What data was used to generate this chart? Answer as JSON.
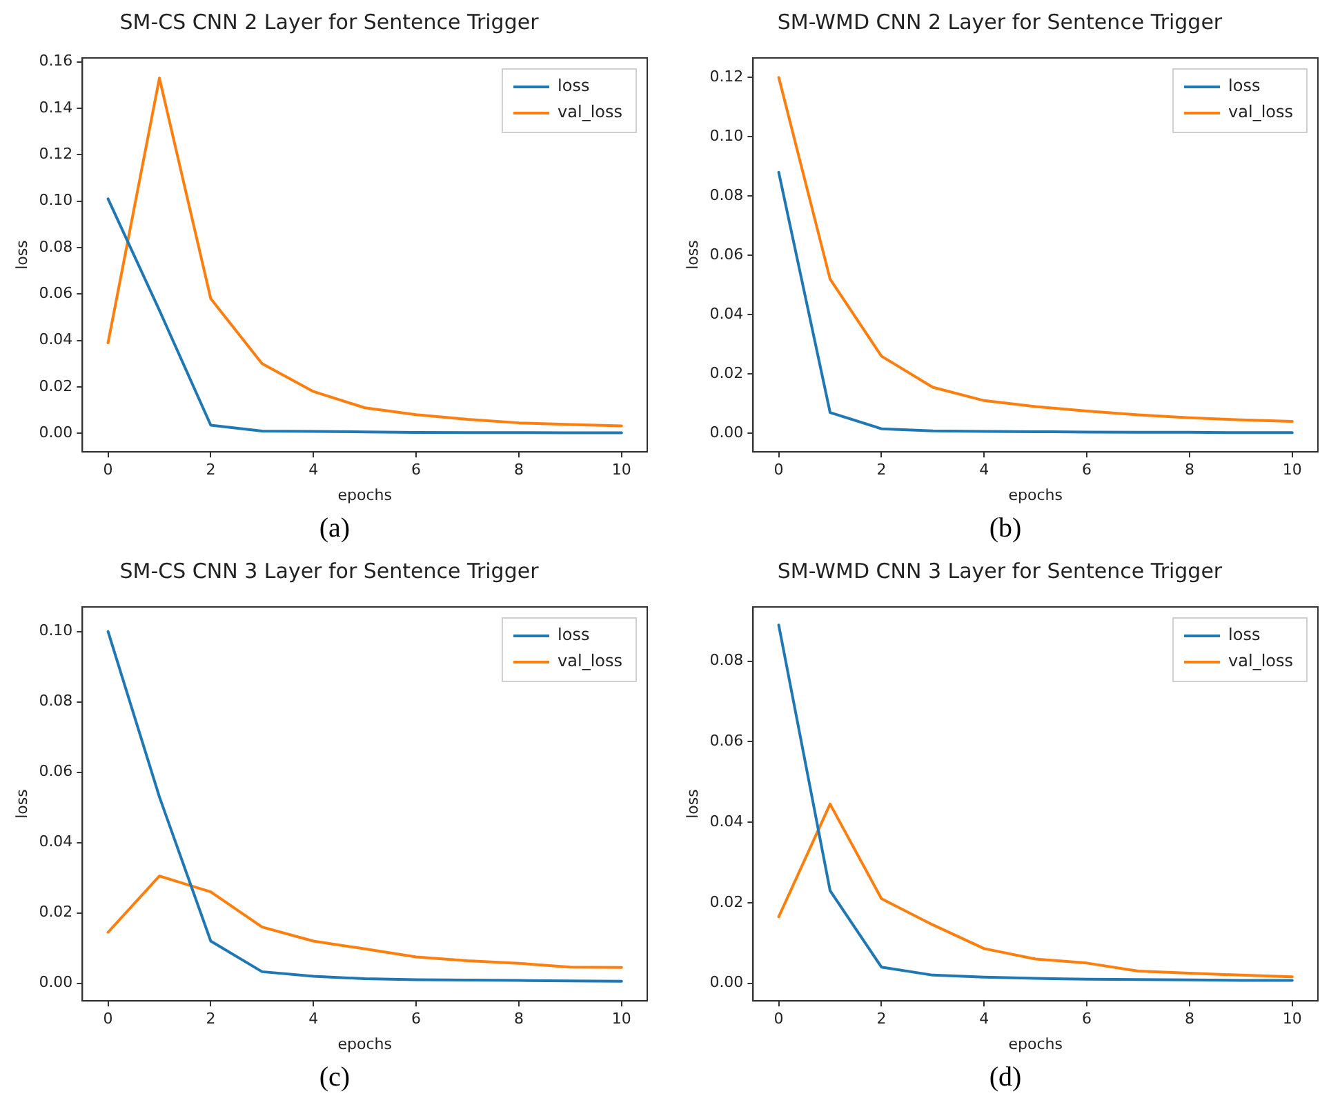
{
  "chart_data": [
    {
      "type": "line",
      "title": "SM-CS CNN 2 Layer for Sentence Trigger",
      "xlabel": "epochs",
      "ylabel": "loss",
      "annotations": [
        "(a)"
      ],
      "x": [
        0,
        1,
        2,
        3,
        4,
        5,
        6,
        7,
        8,
        9,
        10
      ],
      "xlim": [
        -0.5,
        10.5
      ],
      "xticks": [
        0,
        2,
        4,
        6,
        8,
        10
      ],
      "ylim": [
        -0.008,
        0.1617
      ],
      "yticks": [
        {
          "value": 0,
          "label": "0.00"
        },
        {
          "value": 0.02,
          "label": "0.02"
        },
        {
          "value": 0.04,
          "label": "0.04"
        },
        {
          "value": 0.06,
          "label": "0.06"
        },
        {
          "value": 0.08,
          "label": "0.08"
        },
        {
          "value": 0.1,
          "label": "0.10"
        },
        {
          "value": 0.12,
          "label": "0.12"
        },
        {
          "value": 0.14,
          "label": "0.14"
        },
        {
          "value": 0.16,
          "label": "0.16"
        }
      ],
      "grid": false,
      "legend": "top right",
      "marker": "none",
      "line_style": "solid",
      "series": [
        {
          "name": "loss",
          "color": "#1f77b4",
          "values": [
            0.101,
            0.053,
            0.0035,
            0.001,
            0.0008,
            0.0006,
            0.0004,
            0.0003,
            0.0003,
            0.0002,
            0.0002
          ]
        },
        {
          "name": "val_loss",
          "color": "#ff7f0e",
          "values": [
            0.039,
            0.153,
            0.058,
            0.03,
            0.018,
            0.011,
            0.008,
            0.006,
            0.0045,
            0.0038,
            0.0032
          ]
        }
      ]
    },
    {
      "type": "line",
      "title": "SM-WMD CNN 2 Layer for Sentence Trigger",
      "xlabel": "epochs",
      "ylabel": "loss",
      "annotations": [
        "(b)"
      ],
      "x": [
        0,
        1,
        2,
        3,
        4,
        5,
        6,
        7,
        8,
        9,
        10
      ],
      "xlim": [
        -0.5,
        10.5
      ],
      "xticks": [
        0,
        2,
        4,
        6,
        8,
        10
      ],
      "ylim": [
        -0.0063,
        0.1266
      ],
      "yticks": [
        {
          "value": 0,
          "label": "0.00"
        },
        {
          "value": 0.02,
          "label": "0.02"
        },
        {
          "value": 0.04,
          "label": "0.04"
        },
        {
          "value": 0.06,
          "label": "0.06"
        },
        {
          "value": 0.08,
          "label": "0.08"
        },
        {
          "value": 0.1,
          "label": "0.10"
        },
        {
          "value": 0.12,
          "label": "0.12"
        }
      ],
      "grid": false,
      "legend": "top right",
      "marker": "none",
      "line_style": "solid",
      "series": [
        {
          "name": "loss",
          "color": "#1f77b4",
          "values": [
            0.088,
            0.007,
            0.0015,
            0.0008,
            0.0006,
            0.0005,
            0.0004,
            0.0003,
            0.0003,
            0.0002,
            0.0002
          ]
        },
        {
          "name": "val_loss",
          "color": "#ff7f0e",
          "values": [
            0.12,
            0.052,
            0.026,
            0.0155,
            0.011,
            0.009,
            0.0075,
            0.0062,
            0.0052,
            0.0045,
            0.004
          ]
        }
      ]
    },
    {
      "type": "line",
      "title": "SM-CS CNN 3 Layer for Sentence Trigger",
      "xlabel": "epochs",
      "ylabel": "loss",
      "annotations": [
        "(c)"
      ],
      "x": [
        0,
        1,
        2,
        3,
        4,
        5,
        6,
        7,
        8,
        9,
        10
      ],
      "xlim": [
        -0.5,
        10.5
      ],
      "xticks": [
        0,
        2,
        4,
        6,
        8,
        10
      ],
      "ylim": [
        -0.005,
        0.107
      ],
      "yticks": [
        {
          "value": 0,
          "label": "0.00"
        },
        {
          "value": 0.02,
          "label": "0.02"
        },
        {
          "value": 0.04,
          "label": "0.04"
        },
        {
          "value": 0.06,
          "label": "0.06"
        },
        {
          "value": 0.08,
          "label": "0.08"
        },
        {
          "value": 0.1,
          "label": "0.10"
        }
      ],
      "grid": false,
      "legend": "top right",
      "marker": "none",
      "line_style": "solid",
      "series": [
        {
          "name": "loss",
          "color": "#1f77b4",
          "values": [
            0.1,
            0.053,
            0.012,
            0.0033,
            0.002,
            0.0013,
            0.001,
            0.0009,
            0.0008,
            0.0007,
            0.0006
          ]
        },
        {
          "name": "val_loss",
          "color": "#ff7f0e",
          "values": [
            0.0145,
            0.0305,
            0.026,
            0.016,
            0.012,
            0.0098,
            0.0075,
            0.0064,
            0.0057,
            0.0046,
            0.0045
          ]
        }
      ]
    },
    {
      "type": "line",
      "title": "SM-WMD CNN 3 Layer for Sentence Trigger",
      "xlabel": "epochs",
      "ylabel": "loss",
      "annotations": [
        "(d)"
      ],
      "x": [
        0,
        1,
        2,
        3,
        4,
        5,
        6,
        7,
        8,
        9,
        10
      ],
      "xlim": [
        -0.5,
        10.5
      ],
      "xticks": [
        0,
        2,
        4,
        6,
        8,
        10
      ],
      "ylim": [
        -0.0044,
        0.0935
      ],
      "yticks": [
        {
          "value": 0,
          "label": "0.00"
        },
        {
          "value": 0.02,
          "label": "0.02"
        },
        {
          "value": 0.04,
          "label": "0.04"
        },
        {
          "value": 0.06,
          "label": "0.06"
        },
        {
          "value": 0.08,
          "label": "0.08"
        }
      ],
      "grid": false,
      "legend": "top right",
      "marker": "none",
      "line_style": "solid",
      "series": [
        {
          "name": "loss",
          "color": "#1f77b4",
          "values": [
            0.089,
            0.023,
            0.004,
            0.002,
            0.0015,
            0.0012,
            0.001,
            0.0009,
            0.0008,
            0.0007,
            0.0007
          ]
        },
        {
          "name": "val_loss",
          "color": "#ff7f0e",
          "values": [
            0.0165,
            0.0445,
            0.021,
            0.0145,
            0.0086,
            0.006,
            0.005,
            0.003,
            0.0025,
            0.002,
            0.0016
          ]
        }
      ]
    }
  ]
}
